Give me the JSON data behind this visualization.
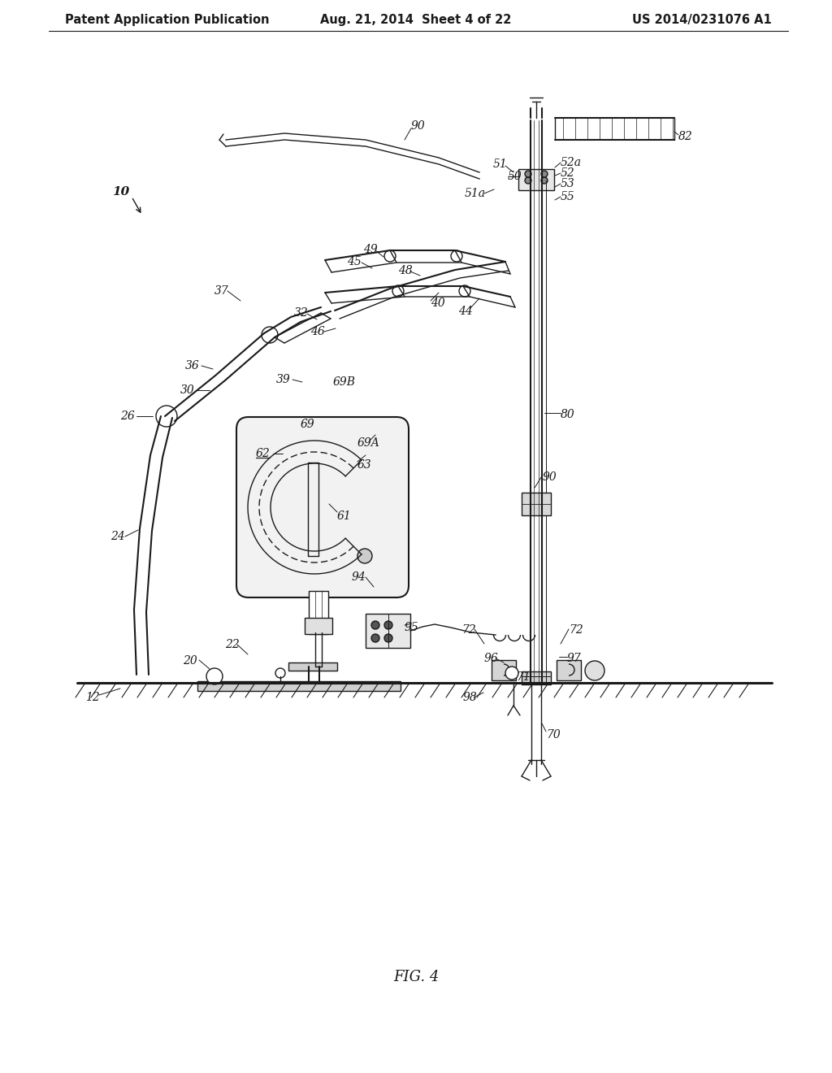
{
  "title_left": "Patent Application Publication",
  "title_mid": "Aug. 21, 2014  Sheet 4 of 22",
  "title_right": "US 2014/0231076 A1",
  "fig_label": "FIG. 4",
  "bg_color": "#ffffff",
  "line_color": "#1a1a1a",
  "label_color": "#1a1a1a",
  "title_fontsize": 10.5,
  "label_fontsize": 10
}
